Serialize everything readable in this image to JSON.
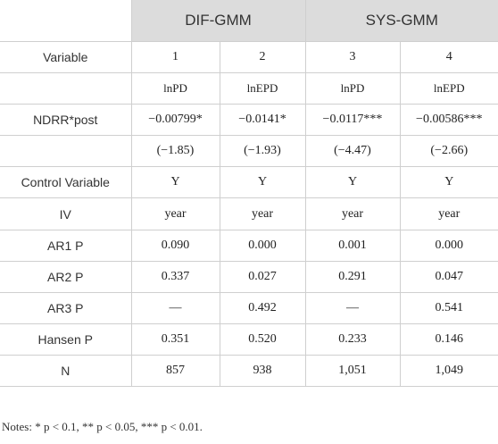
{
  "table": {
    "group_headers": [
      "DIF-GMM",
      "SYS-GMM"
    ],
    "variable_label": "Variable",
    "column_numbers": [
      "1",
      "2",
      "3",
      "4"
    ],
    "dependent_vars": [
      "lnPD",
      "lnEPD",
      "lnPD",
      "lnEPD"
    ],
    "rows": [
      {
        "label": "NDRR*post",
        "values": [
          "−0.00799*",
          "−0.0141*",
          "−0.0117***",
          "−0.00586***"
        ]
      },
      {
        "label": "",
        "values": [
          "(−1.85)",
          "(−1.93)",
          "(−4.47)",
          "(−2.66)"
        ]
      },
      {
        "label": "Control Variable",
        "values": [
          "Y",
          "Y",
          "Y",
          "Y"
        ]
      },
      {
        "label": "IV",
        "values": [
          "year",
          "year",
          "year",
          "year"
        ]
      },
      {
        "label": "AR1 P",
        "values": [
          "0.090",
          "0.000",
          "0.001",
          "0.000"
        ]
      },
      {
        "label": "AR2 P",
        "values": [
          "0.337",
          "0.027",
          "0.291",
          "0.047"
        ]
      },
      {
        "label": "AR3 P",
        "values": [
          "—",
          "0.492",
          "—",
          "0.541"
        ]
      },
      {
        "label": "Hansen P",
        "values": [
          "0.351",
          "0.520",
          "0.233",
          "0.146"
        ]
      },
      {
        "label": "N",
        "values": [
          "857",
          "938",
          "1,051",
          "1,049"
        ]
      }
    ]
  },
  "notes": "Notes: * p < 0.1, ** p < 0.05, *** p < 0.01."
}
